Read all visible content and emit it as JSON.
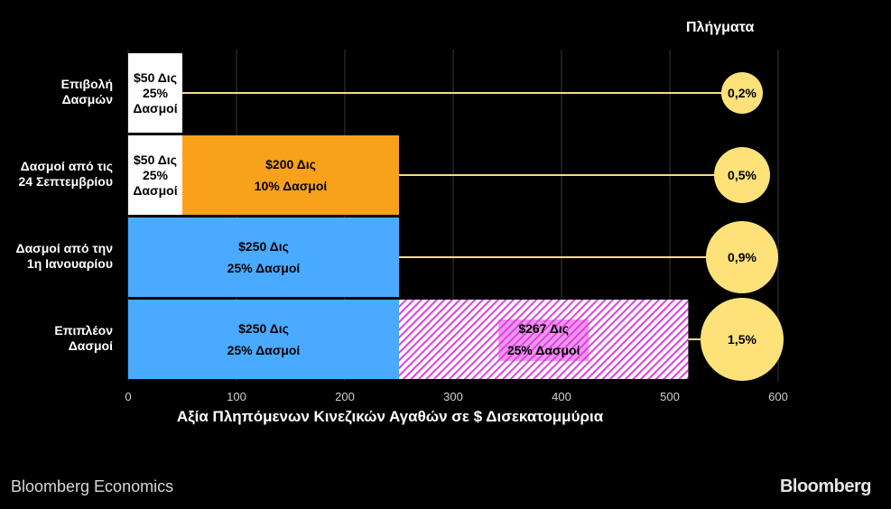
{
  "chart_data": {
    "type": "bar",
    "stacked": true,
    "orientation": "horizontal",
    "categories": [
      "Επιβολή Δασμών",
      "Δασμοί από τις 24 Σεπτεμβρίου",
      "Δασμοί από την 1η Ιανουαρίου",
      "Επιπλέον Δασμοί"
    ],
    "category_lines": [
      [
        "Επιβολή",
        "Δασμών"
      ],
      [
        "Δασμοί από τις",
        "24 Σεπτεμβρίου"
      ],
      [
        "Δασμοί από την",
        "1η Ιανουαρίου"
      ],
      [
        "Επιπλέον",
        "Δασμοί"
      ]
    ],
    "segments": [
      [
        {
          "value": 50,
          "color": "#ffffff",
          "pattern": "solid",
          "label": [
            "$50 Δις",
            "25%",
            "Δασμοί"
          ]
        }
      ],
      [
        {
          "value": 50,
          "color": "#ffffff",
          "pattern": "solid",
          "label": [
            "$50 Δις",
            "25%",
            "Δασμοί"
          ]
        },
        {
          "value": 200,
          "color": "#f9a11b",
          "pattern": "solid",
          "label": [
            "$200 Δις",
            "10% Δασμοί"
          ]
        }
      ],
      [
        {
          "value": 250,
          "color": "#4aaaff",
          "pattern": "solid",
          "label": [
            "$250 Δις",
            "25% Δασμοί"
          ]
        }
      ],
      [
        {
          "value": 250,
          "color": "#4aaaff",
          "pattern": "solid",
          "label": [
            "$250 Δις",
            "25% Δασμοί"
          ]
        },
        {
          "value": 267,
          "color": "#e040e0",
          "pattern": "hatched",
          "label": [
            "$267 Δις",
            "25% Δασμοί"
          ]
        }
      ]
    ],
    "impacts": [
      "0,2%",
      "0,5%",
      "0,9%",
      "1,5%"
    ],
    "impact_values": [
      0.2,
      0.5,
      0.9,
      1.5
    ],
    "impact_title": "Πλήγματα",
    "xlabel": "Αξία Πληπόμενων Κινεζικών Αγαθών σε $ Δισεκατομμύρια",
    "xlim": [
      0,
      600
    ],
    "xticks": [
      0,
      100,
      200,
      300,
      400,
      500,
      600
    ],
    "grid": true
  },
  "footer": {
    "source": "Bloomberg Economics",
    "brand": "Bloomberg"
  },
  "colors": {
    "background": "#000000",
    "impact_circle": "#fde27a",
    "connector": "#f2dc86",
    "grid": "#1c1c1c"
  }
}
